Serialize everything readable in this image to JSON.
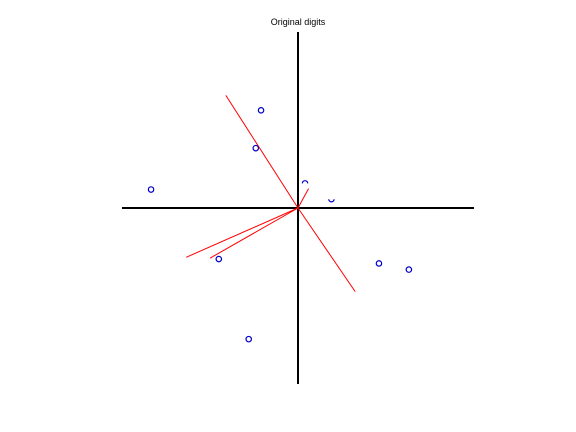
{
  "chart_data": {
    "type": "scatter",
    "title": "Original digits",
    "xlabel": "",
    "ylabel": "",
    "grid": false,
    "legend": "none",
    "axes": {
      "style": "cross-through-origin",
      "xlim": [
        -2.0,
        2.0
      ],
      "ylim": [
        -2.0,
        2.0
      ]
    },
    "colors": {
      "points": "#0000cc",
      "vectors": "#ff0000",
      "axes": "#000000"
    },
    "series": [
      {
        "marker": "circle",
        "points": [
          {
            "x": -0.42,
            "y": 1.11
          },
          {
            "x": -0.48,
            "y": 0.68
          },
          {
            "x": -1.67,
            "y": 0.21
          },
          {
            "x": 0.08,
            "y": 0.28,
            "marker": "arc-top"
          },
          {
            "x": 0.38,
            "y": 0.1,
            "marker": "arc-bottom"
          },
          {
            "x": -0.9,
            "y": -0.58
          },
          {
            "x": 0.92,
            "y": -0.63
          },
          {
            "x": 1.26,
            "y": -0.7
          },
          {
            "x": -0.56,
            "y": -1.49
          }
        ]
      }
    ],
    "vectors": [
      {
        "x": -0.82,
        "y": 1.28
      },
      {
        "x": 0.65,
        "y": -0.95
      },
      {
        "x": -1.27,
        "y": -0.56
      },
      {
        "x": -1.0,
        "y": -0.57
      },
      {
        "x": 0.12,
        "y": 0.22
      }
    ]
  }
}
